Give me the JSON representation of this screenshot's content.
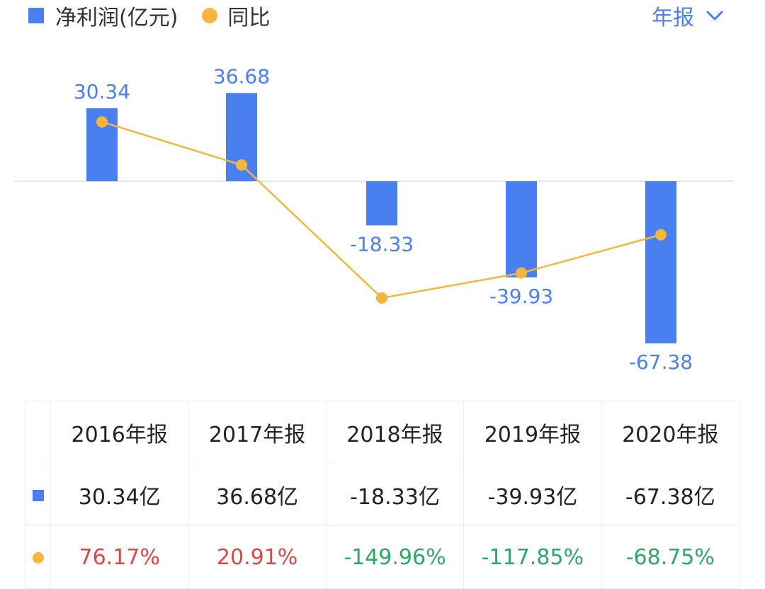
{
  "legend": {
    "net_profit_label": "净利润(亿元)",
    "yoy_label": "同比"
  },
  "period_selector": {
    "label": "年报"
  },
  "colors": {
    "bar": "#4a7ff0",
    "line": "#f5b63e",
    "label": "#4a7ff0",
    "positive": "#e04545",
    "negative": "#2ea866"
  },
  "chart_data": {
    "type": "bar",
    "categories": [
      "2016年报",
      "2017年报",
      "2018年报",
      "2019年报",
      "2020年报"
    ],
    "series": [
      {
        "name": "净利润(亿元)",
        "type": "bar",
        "values": [
          30.34,
          36.68,
          -18.33,
          -39.93,
          -67.38
        ],
        "labels": [
          "30.34",
          "36.68",
          "-18.33",
          "-39.93",
          "-67.38"
        ]
      },
      {
        "name": "同比",
        "type": "line",
        "values": [
          76.17,
          20.91,
          -149.96,
          -117.85,
          -68.75
        ],
        "unit": "%"
      }
    ],
    "ylim": [
      -75,
      40
    ],
    "y2lim": [
      -241,
      190
    ]
  },
  "table": {
    "headers": [
      "2016年报",
      "2017年报",
      "2018年报",
      "2019年报",
      "2020年报"
    ],
    "profit_row": [
      "30.34亿",
      "36.68亿",
      "-18.33亿",
      "-39.93亿",
      "-67.38亿"
    ],
    "yoy_row": [
      "76.17%",
      "20.91%",
      "-149.96%",
      "-117.85%",
      "-68.75%"
    ]
  }
}
